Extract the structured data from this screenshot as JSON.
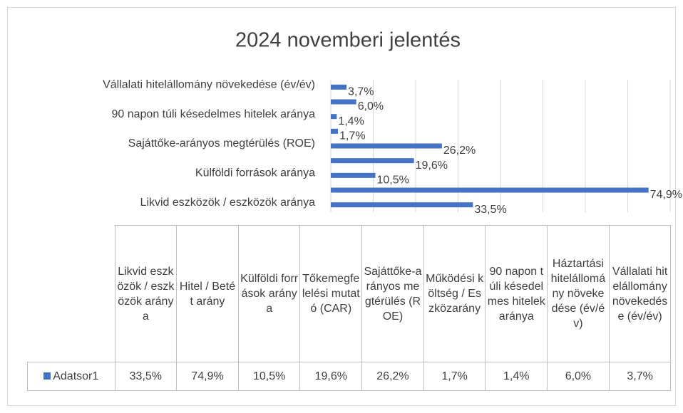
{
  "chart_data": {
    "type": "bar",
    "orientation": "horizontal",
    "title": "2024 novemberi jelentés",
    "categories": [
      "Likvid eszközök / eszközök aránya",
      "Hitel / Betét arány",
      "Külföldi források aránya",
      "Tőkemegfelelési mutató (CAR)",
      "Sajáttőke-arányos megtérülés (ROE)",
      "Működési költség / Eszközarány",
      "90 napon túli késedelmes hitelek aránya",
      "Háztartási hitelállomány növekedése (év/év)",
      "Vállalati hitelállomány növekedése (év/év)"
    ],
    "series": [
      {
        "name": "Adatsor1",
        "color": "#4472c4",
        "values": [
          33.5,
          74.9,
          10.5,
          19.6,
          26.2,
          1.7,
          1.4,
          6.0,
          3.7
        ],
        "value_labels": [
          "33,5%",
          "74,9%",
          "10,5%",
          "19,6%",
          "26,2%",
          "1,7%",
          "1,4%",
          "6,0%",
          "3,7%"
        ]
      }
    ],
    "xlim": [
      0,
      80
    ],
    "xticks": [
      0,
      10,
      20,
      30,
      40,
      50,
      60,
      70,
      80
    ],
    "grid": true
  }
}
